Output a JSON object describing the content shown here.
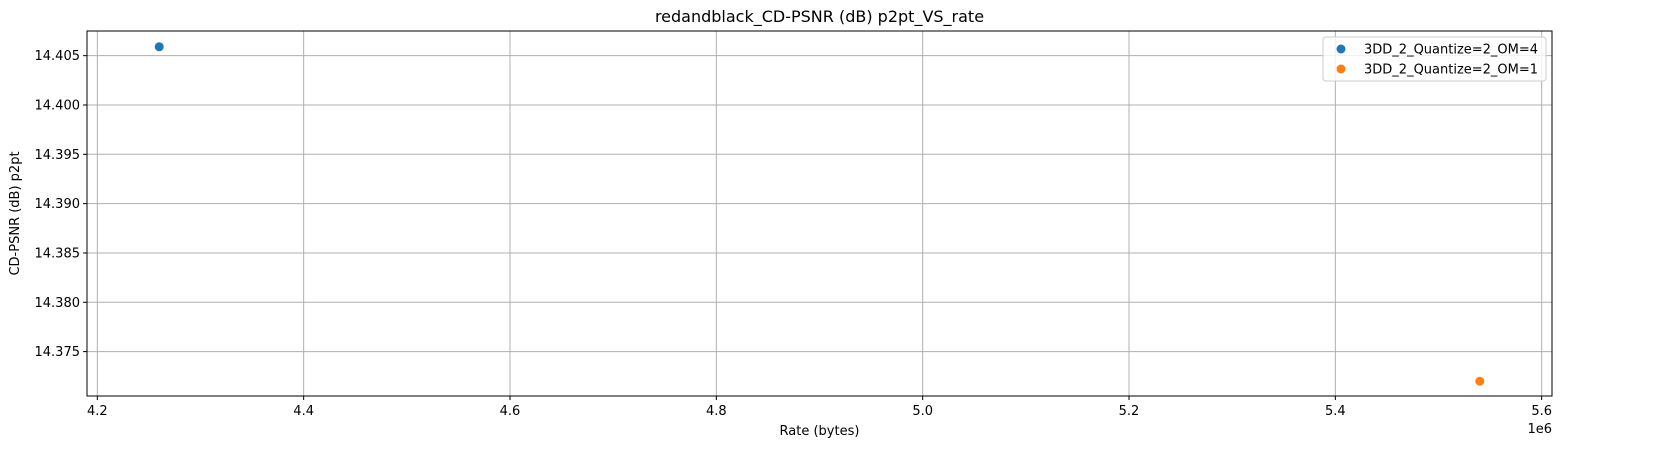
{
  "chart_data": {
    "type": "scatter",
    "title": "redandblack_CD-PSNR (dB) p2pt_VS_rate",
    "xlabel": "Rate (bytes)",
    "ylabel": "CD-PSNR (dB) p2pt",
    "x_offset_label": "1e6",
    "xlim": [
      4.19,
      5.61
    ],
    "ylim": [
      14.3705,
      14.4075
    ],
    "x_ticks": [
      4.2,
      4.4,
      4.6,
      4.8,
      5.0,
      5.2,
      5.4,
      5.6
    ],
    "x_tick_labels": [
      "4.2",
      "4.4",
      "4.6",
      "4.8",
      "5.0",
      "5.2",
      "5.4",
      "5.6"
    ],
    "y_ticks": [
      14.375,
      14.38,
      14.385,
      14.39,
      14.395,
      14.4,
      14.405
    ],
    "y_tick_labels": [
      "14.375",
      "14.380",
      "14.385",
      "14.390",
      "14.395",
      "14.400",
      "14.405"
    ],
    "grid": true,
    "legend_position": "top-right",
    "series": [
      {
        "name": "3DD_2_Quantize=2_OM=4",
        "color": "#1f77b4",
        "points": [
          {
            "x": 4.26,
            "y": 14.4059
          }
        ]
      },
      {
        "name": "3DD_2_Quantize=2_OM=1",
        "color": "#ff7f0e",
        "points": [
          {
            "x": 5.54,
            "y": 14.372
          }
        ]
      }
    ]
  }
}
